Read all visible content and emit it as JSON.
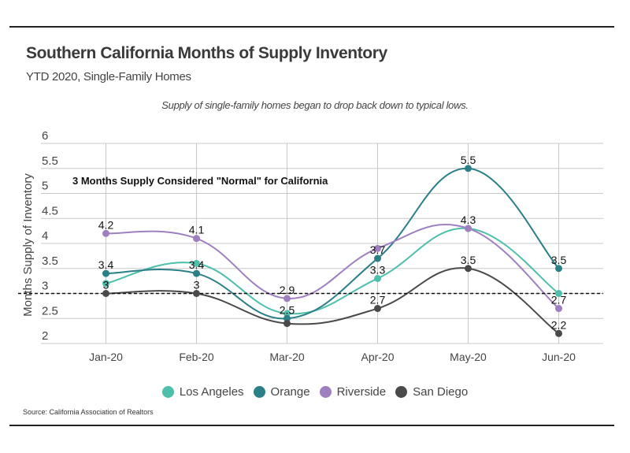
{
  "header": {
    "title": "Southern California Months of Supply Inventory",
    "subtitle": "YTD 2020, Single-Family Homes",
    "annotation": "Supply of single-family homes began to drop back down to typical lows."
  },
  "footer": {
    "source": "Source:  California Association of Realtors"
  },
  "chart_data": {
    "type": "line",
    "title": "Southern California Months of Supply Inventory",
    "subtitle": "YTD 2020, Single-Family Homes",
    "xlabel": "",
    "ylabel": "Months Supply of Inventory",
    "categories": [
      "Jan-20",
      "Feb-20",
      "Mar-20",
      "Apr-20",
      "May-20",
      "Jun-20"
    ],
    "ylim": [
      2,
      6
    ],
    "yticks": [
      "2",
      "2.5",
      "3",
      "3.5",
      "4",
      "4.5",
      "5",
      "5.5",
      "6"
    ],
    "grid": true,
    "legend_position": "bottom",
    "reference_line": {
      "value": 3,
      "style": "dashed",
      "label": "3 Months Supply Considered \"Normal\" for California"
    },
    "series": [
      {
        "name": "Los Angeles",
        "color": "#4dbfab",
        "values": [
          3.2,
          3.6,
          2.6,
          3.3,
          4.3,
          3.0
        ],
        "labels": [
          "",
          "",
          "",
          "3.3",
          "",
          ""
        ]
      },
      {
        "name": "Orange",
        "color": "#2b7f87",
        "values": [
          3.4,
          3.4,
          2.5,
          3.7,
          5.5,
          3.5
        ],
        "labels": [
          "3.4",
          "3.4",
          "2.5",
          "3.7",
          "5.5",
          "3.5"
        ]
      },
      {
        "name": "Riverside",
        "color": "#a07fc0",
        "values": [
          4.2,
          4.1,
          2.9,
          3.9,
          4.3,
          2.7
        ],
        "labels": [
          "4.2",
          "4.1",
          "2.9",
          "",
          "4.3",
          "2.7"
        ]
      },
      {
        "name": "San Diego",
        "color": "#4a4a4a",
        "values": [
          3.0,
          3.0,
          2.4,
          2.7,
          3.5,
          2.2
        ],
        "labels": [
          "3",
          "3",
          "",
          "2.7",
          "3.5",
          "2.2"
        ]
      }
    ]
  }
}
